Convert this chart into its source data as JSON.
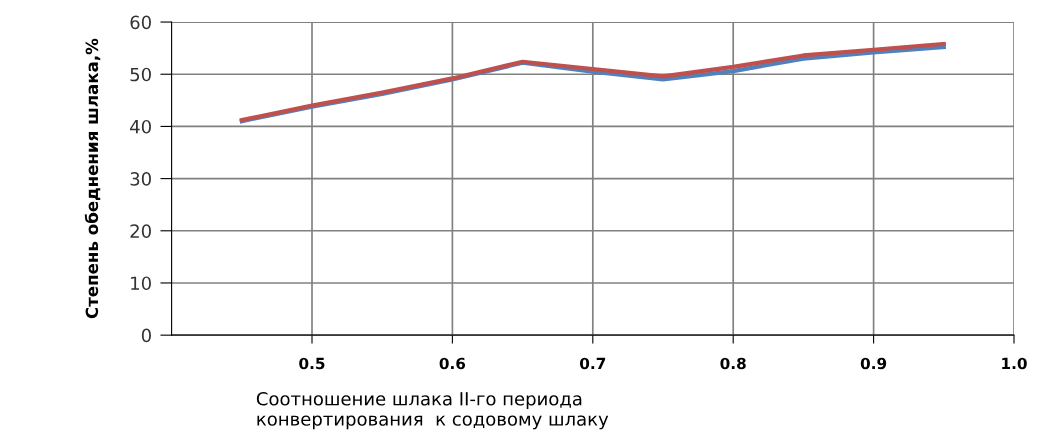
{
  "chart_data": {
    "type": "line",
    "xlabel": "Соотношение шлака II-го периода\nконвертирования  к содовому шлаку",
    "ylabel": "Степень обеднения шлака,%",
    "x": [
      0.45,
      0.5,
      0.55,
      0.6,
      0.65,
      0.7,
      0.75,
      0.8,
      0.85,
      0.9,
      0.95
    ],
    "series": [
      {
        "color": "#4f81bd",
        "values": [
          41,
          43.8,
          46.2,
          49,
          52.2,
          50.5,
          49,
          50.6,
          53,
          54.2,
          55.2
        ]
      },
      {
        "color": "#c0504d",
        "values": [
          41.2,
          44,
          46.5,
          49.2,
          52.4,
          51,
          49.6,
          51.4,
          53.6,
          54.7,
          55.8
        ]
      }
    ],
    "xlim": [
      0.4,
      1.0
    ],
    "xticks": [
      0.5,
      0.6,
      0.7,
      0.8,
      0.9,
      {
        "value": 1.0,
        "label": "1.0"
      }
    ],
    "ylim": [
      0,
      60
    ],
    "yticks": [
      0,
      10,
      20,
      30,
      40,
      50,
      60
    ],
    "grid": true,
    "marker": "none",
    "line_style": "solid"
  }
}
